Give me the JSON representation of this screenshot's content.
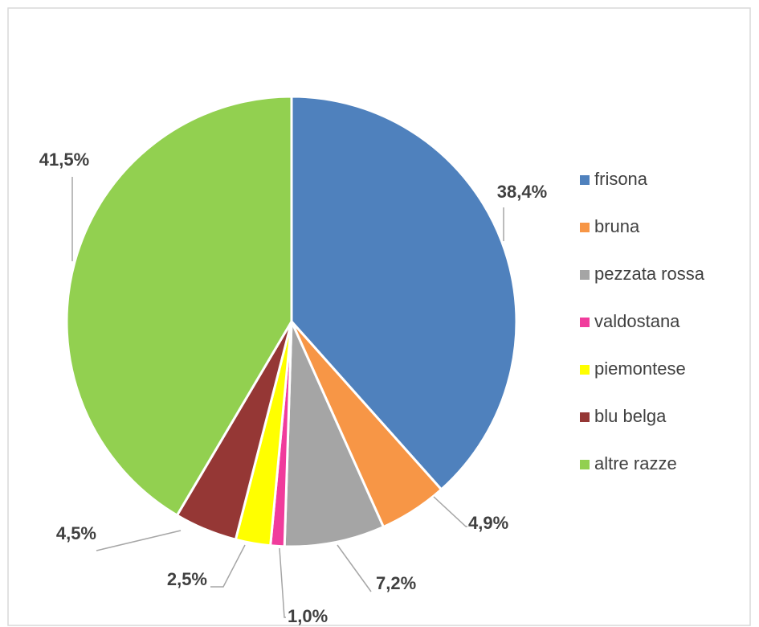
{
  "chart_data": {
    "type": "pie",
    "categories": [
      "frisona",
      "bruna",
      "pezzata rossa",
      "valdostana",
      "piemontese",
      "blu belga",
      "altre razze"
    ],
    "values": [
      38.4,
      4.9,
      7.2,
      1.0,
      2.5,
      4.5,
      41.5
    ],
    "value_labels": [
      "38,4%",
      "4,9%",
      "7,2%",
      "1,0%",
      "2,5%",
      "4,5%",
      "41,5%"
    ],
    "colors": [
      "#4f81bd",
      "#f79646",
      "#a5a5a5",
      "#f03c9c",
      "#ffff00",
      "#953735",
      "#92d050"
    ],
    "legend": "right"
  }
}
